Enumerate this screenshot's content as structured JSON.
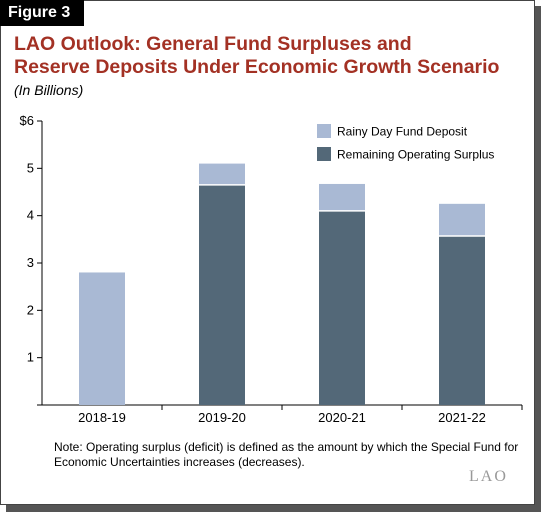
{
  "figure_label": "Figure 3",
  "title_line1": "LAO Outlook: General Fund Surpluses and",
  "title_line2": "Reserve Deposits Under Economic Growth Scenario",
  "subtitle": "(In Billions)",
  "note": "Note: Operating surplus (deficit) is defined as the amount by which the Special Fund for Economic Uncertainties increases (decreases).",
  "logo": "LAO",
  "colors": {
    "rainy": "#a9b9d4",
    "surplus": "#536878",
    "title": "#a33124"
  },
  "chart_data": {
    "type": "bar",
    "stacked": true,
    "categories": [
      "2018-19",
      "2019-20",
      "2020-21",
      "2021-22"
    ],
    "series": [
      {
        "name": "Remaining Operating Surplus",
        "values": [
          0,
          4.65,
          4.1,
          3.57
        ]
      },
      {
        "name": "Rainy Day Fund Deposit",
        "values": [
          2.8,
          0.45,
          0.57,
          0.68
        ]
      }
    ],
    "y_tick_labels": [
      "",
      "1",
      "2",
      "3",
      "4",
      "5",
      "$6"
    ],
    "ylim": [
      0,
      6
    ],
    "grid": false,
    "legend_position": "top-right",
    "legend": [
      "Rainy Day Fund Deposit",
      "Remaining Operating Surplus"
    ]
  }
}
